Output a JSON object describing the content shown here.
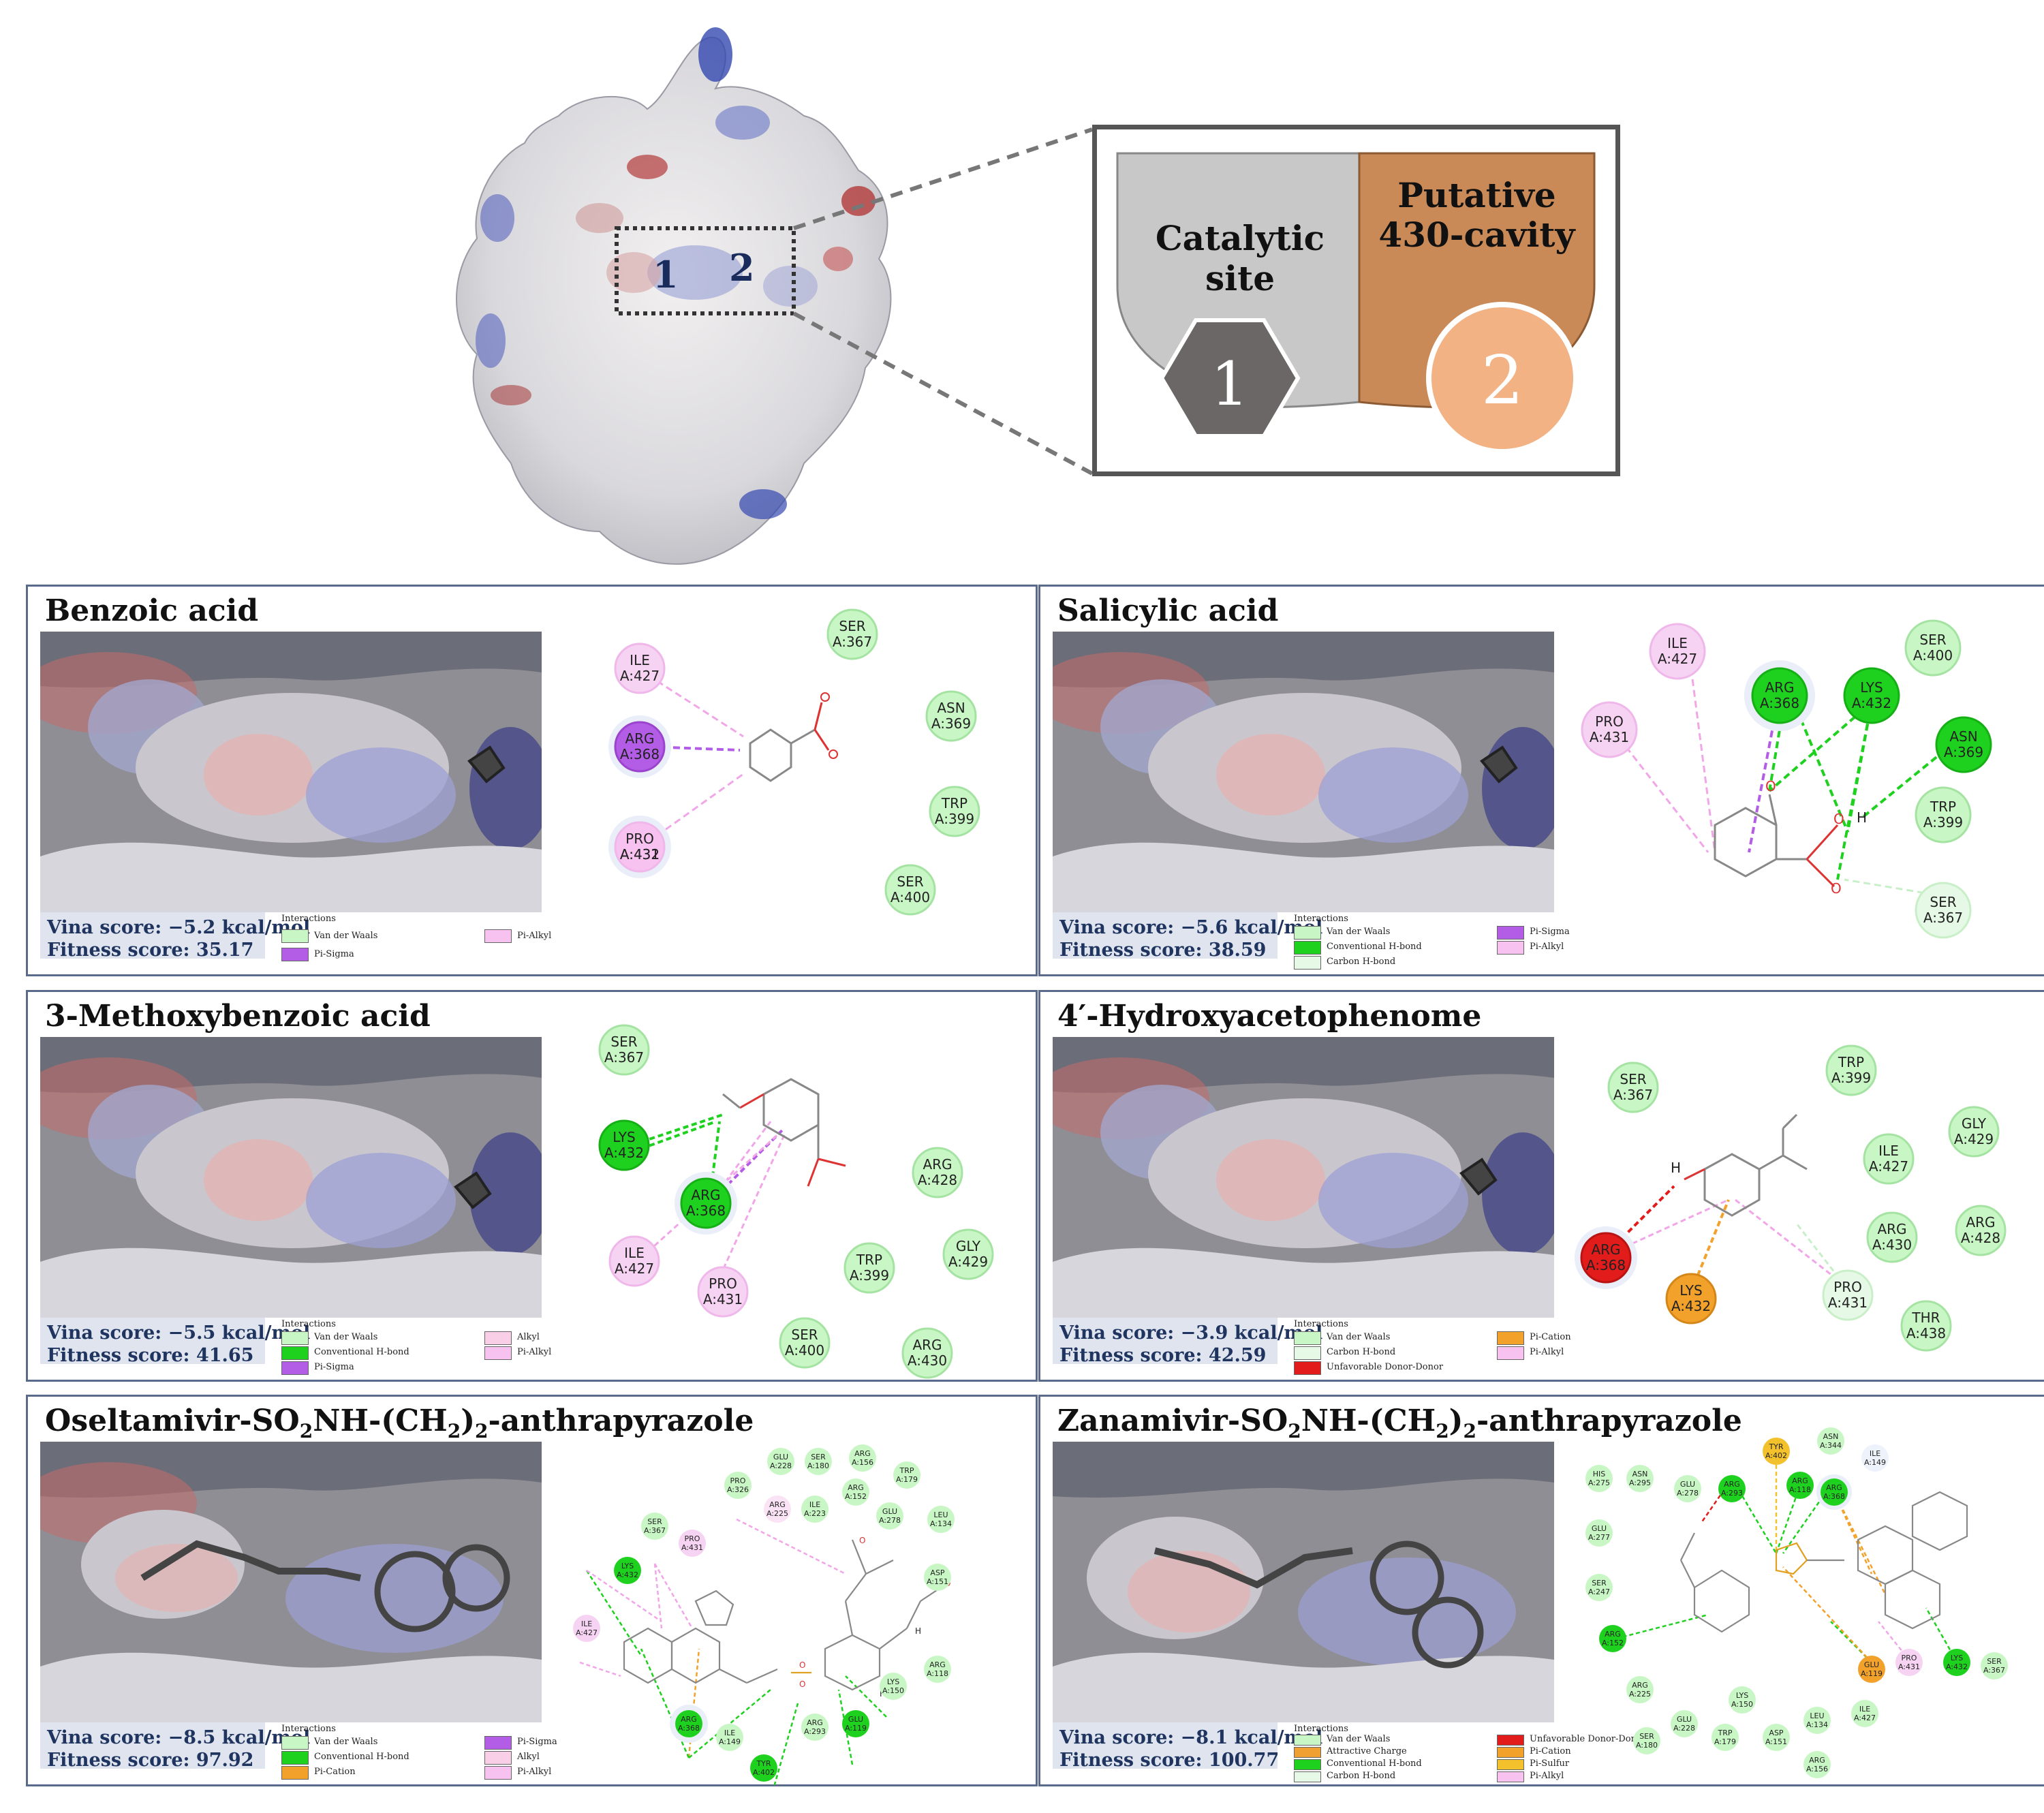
{
  "top_diagram": {
    "site_labels": [
      "1",
      "2"
    ],
    "legend": {
      "catalytic_title": "Catalytic site",
      "putative_title_line1": "Putative",
      "putative_title_line2": "430-cavity",
      "badge1": "1",
      "badge2": "2"
    }
  },
  "legend_texts": {
    "interactions": "Interactions",
    "vdw": "Van der Waals",
    "pi_sigma": "Pi-Sigma",
    "pi_alkyl": "Pi-Alkyl",
    "conv_hbond": "Conventional H-bond",
    "carbon_hbond": "Carbon H-bond",
    "alkyl": "Alkyl",
    "pi_cation": "Pi-Cation",
    "unfav": "Unfavorable Donor-Donor",
    "attractive": "Attractive Charge",
    "unfav_dd": "Unfavorable Donor-Donor",
    "pi_sulfur": "Pi-Sulfur"
  },
  "colors": {
    "vdw": "#c8f7c5",
    "vdw_border": "#6cc56a",
    "conv": "#1fd11f",
    "carbon": "#e6f9e6",
    "pi_sigma": "#b35de6",
    "pi_alkyl": "#f7c2f0",
    "alkyl": "#f9cfe8",
    "pi_cation": "#f2a12b",
    "unfav": "#e21b1b",
    "attractive": "#f0a030",
    "pi_sulfur": "#f2c12b",
    "score_text": "#1f3560"
  },
  "panels": [
    {
      "title": "Benzoic acid",
      "vina": "Vina score: −5.2 kcal/mol",
      "fitness": "Fitness score: 35.17",
      "residues": [
        {
          "name": "SER",
          "id": "A:367",
          "type": "vdw"
        },
        {
          "name": "ILE",
          "id": "A:427",
          "type": "pi_alkyl"
        },
        {
          "name": "ASN",
          "id": "A:369",
          "type": "vdw"
        },
        {
          "name": "ARG",
          "id": "A:368",
          "type": "pi_sigma"
        },
        {
          "name": "TRP",
          "id": "A:399",
          "type": "vdw"
        },
        {
          "name": "PRO",
          "id": "A:431",
          "type": "pi_alkyl",
          "overlay": "A:432"
        },
        {
          "name": "SER",
          "id": "A:400",
          "type": "vdw"
        }
      ]
    },
    {
      "title": "Salicylic acid",
      "vina": "Vina score: −5.6 kcal/mol",
      "fitness": "Fitness score: 38.59",
      "residues": [
        {
          "name": "ILE",
          "id": "A:427",
          "type": "pi_alkyl"
        },
        {
          "name": "SER",
          "id": "A:400",
          "type": "vdw"
        },
        {
          "name": "ARG",
          "id": "A:368",
          "type": "conv"
        },
        {
          "name": "LYS",
          "id": "A:432",
          "type": "conv"
        },
        {
          "name": "PRO",
          "id": "A:431",
          "type": "pi_alkyl"
        },
        {
          "name": "ASN",
          "id": "A:369",
          "type": "conv"
        },
        {
          "name": "TRP",
          "id": "A:399",
          "type": "vdw"
        },
        {
          "name": "SER",
          "id": "A:367",
          "type": "carbon"
        }
      ],
      "atom_labels": [
        "O",
        "O",
        "H",
        "O"
      ]
    },
    {
      "title": "3-Methoxybenzoic acid",
      "vina": "Vina score: −5.5 kcal/mol",
      "fitness": "Fitness score: 41.65",
      "residues": [
        {
          "name": "SER",
          "id": "A:367",
          "type": "vdw"
        },
        {
          "name": "LYS",
          "id": "A:432",
          "type": "conv"
        },
        {
          "name": "ARG",
          "id": "A:368",
          "type": "conv"
        },
        {
          "name": "ARG",
          "id": "A:428",
          "type": "vdw"
        },
        {
          "name": "ILE",
          "id": "A:427",
          "type": "pi_alkyl"
        },
        {
          "name": "GLY",
          "id": "A:429",
          "type": "vdw"
        },
        {
          "name": "TRP",
          "id": "A:399",
          "type": "vdw"
        },
        {
          "name": "PRO",
          "id": "A:431",
          "type": "pi_alkyl"
        },
        {
          "name": "SER",
          "id": "A:400",
          "type": "vdw"
        },
        {
          "name": "ARG",
          "id": "A:430",
          "type": "vdw"
        }
      ]
    },
    {
      "title": "4′-Hydroxyacetophenome",
      "vina": "Vina score: −3.9 kcal/mol",
      "fitness": "Fitness score: 42.59",
      "residues": [
        {
          "name": "SER",
          "id": "A:367",
          "type": "vdw"
        },
        {
          "name": "TRP",
          "id": "A:399",
          "type": "vdw"
        },
        {
          "name": "GLY",
          "id": "A:429",
          "type": "vdw"
        },
        {
          "name": "ILE",
          "id": "A:427",
          "type": "vdw"
        },
        {
          "name": "ARG",
          "id": "A:368",
          "type": "unfav"
        },
        {
          "name": "ARG",
          "id": "A:430",
          "type": "vdw"
        },
        {
          "name": "ARG",
          "id": "A:428",
          "type": "vdw"
        },
        {
          "name": "LYS",
          "id": "A:432",
          "type": "pi_cation"
        },
        {
          "name": "PRO",
          "id": "A:431",
          "type": "carbon"
        },
        {
          "name": "THR",
          "id": "A:438",
          "type": "vdw"
        }
      ],
      "atom_labels": [
        "H"
      ]
    },
    {
      "title_pre": "Oseltamivir-SO",
      "title_sub1": "2",
      "title_mid": "NH-(CH",
      "title_sub2": "2",
      "title_post": ")",
      "title_sub3": "2",
      "title_end": "-anthrapyrazole",
      "vina": "Vina score: −8.5 kcal/mol",
      "fitness": "Fitness score: 97.92",
      "residues": [
        {
          "name": "GLU",
          "id": "A:228"
        },
        {
          "name": "SER",
          "id": "A:180"
        },
        {
          "name": "ARG",
          "id": "A:156"
        },
        {
          "name": "TRP",
          "id": "A:179"
        },
        {
          "name": "PRO",
          "id": "A:326"
        },
        {
          "name": "ARG",
          "id": "A:152"
        },
        {
          "name": "ARG",
          "id": "A:225"
        },
        {
          "name": "ILE",
          "id": "A:223"
        },
        {
          "name": "GLU",
          "id": "A:278"
        },
        {
          "name": "LEU",
          "id": "A:134"
        },
        {
          "name": "SER",
          "id": "A:367"
        },
        {
          "name": "PRO",
          "id": "A:431"
        },
        {
          "name": "LYS",
          "id": "A:432"
        },
        {
          "name": "ASP",
          "id": "A:151"
        },
        {
          "name": "ILE",
          "id": "A:427"
        },
        {
          "name": "ARG",
          "id": "A:118"
        },
        {
          "name": "LYS",
          "id": "A:150"
        },
        {
          "name": "ARG",
          "id": "A:368"
        },
        {
          "name": "ILE",
          "id": "A:149"
        },
        {
          "name": "ARG",
          "id": "A:293"
        },
        {
          "name": "GLU",
          "id": "A:119"
        },
        {
          "name": "TYR",
          "id": "A:402"
        }
      ],
      "atom_labels": [
        "O",
        "O",
        "H",
        "O",
        "O",
        "H"
      ]
    },
    {
      "title_pre": "Zanamivir-SO",
      "title_sub1": "2",
      "title_mid": "NH-(CH",
      "title_sub2": "2",
      "title_post": ")",
      "title_sub3": "2",
      "title_end": "-anthrapyrazole",
      "vina": "Vina score: −8.1 kcal/mol",
      "fitness": "Fitness score: 100.77",
      "residues": [
        {
          "name": "TYR",
          "id": "A:402"
        },
        {
          "name": "ASN",
          "id": "A:344"
        },
        {
          "name": "ILE",
          "id": "A:149"
        },
        {
          "name": "HIS",
          "id": "A:275"
        },
        {
          "name": "ASN",
          "id": "A:295"
        },
        {
          "name": "GLU",
          "id": "A:278"
        },
        {
          "name": "ARG",
          "id": "A:293"
        },
        {
          "name": "ARG",
          "id": "A:118"
        },
        {
          "name": "ARG",
          "id": "A:368"
        },
        {
          "name": "GLU",
          "id": "A:277"
        },
        {
          "name": "SER",
          "id": "A:247"
        },
        {
          "name": "ARG",
          "id": "A:152"
        },
        {
          "name": "GLU",
          "id": "A:119"
        },
        {
          "name": "PRO",
          "id": "A:431"
        },
        {
          "name": "LYS",
          "id": "A:432"
        },
        {
          "name": "SER",
          "id": "A:367"
        },
        {
          "name": "ARG",
          "id": "A:225"
        },
        {
          "name": "LYS",
          "id": "A:150"
        },
        {
          "name": "LEU",
          "id": "A:134"
        },
        {
          "name": "ILE",
          "id": "A:427"
        },
        {
          "name": "GLU",
          "id": "A:228"
        },
        {
          "name": "TRP",
          "id": "A:179"
        },
        {
          "name": "ASP",
          "id": "A:151"
        },
        {
          "name": "SER",
          "id": "A:180"
        },
        {
          "name": "ARG",
          "id": "A:156"
        }
      ]
    }
  ]
}
